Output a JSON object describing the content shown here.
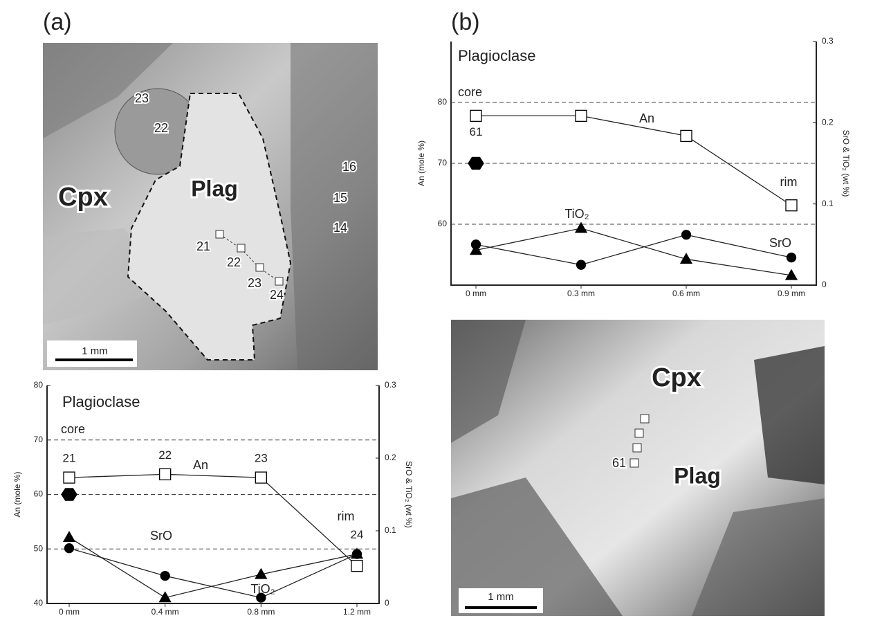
{
  "panels": [
    {
      "label": "(a)",
      "image_labels": [
        "23",
        "22",
        "Cpx",
        "Plag",
        "16",
        "15",
        "14",
        "21",
        "22",
        "23",
        "24",
        "1 mm"
      ]
    },
    {
      "label": "(b)",
      "image_labels": [
        "Cpx",
        "Plag",
        "61",
        "1 mm"
      ]
    }
  ],
  "chart_data": [
    {
      "type": "line",
      "title": "Plagioclase",
      "categories": [
        "0 mm",
        "0.4 mm",
        "0.8 mm",
        "1.2 mm"
      ],
      "ylabel": "An (mole %)",
      "y2label": "SrO & TiO₂ (wt %)",
      "ylim": [
        40,
        80
      ],
      "yticks": [
        40,
        50,
        60,
        70,
        80
      ],
      "y2lim": [
        0,
        0.3
      ],
      "y2ticks": [
        0,
        0.1,
        0.2,
        0.3
      ],
      "grid": "dashed",
      "annotations": [
        "core",
        "rim"
      ],
      "series": [
        {
          "name": "An",
          "marker": "square",
          "color": "#ffffff",
          "connected": true,
          "values": [
            63.1,
            63.7,
            63.1,
            46.9
          ],
          "point_labels": [
            "21",
            "22",
            "23",
            "24"
          ]
        },
        {
          "marker": "hexagon",
          "color": "#000000",
          "connected": false,
          "values": [
            60,
            null,
            null,
            null
          ]
        },
        {
          "name": "SrO",
          "axis": "y2",
          "marker": "circle",
          "color": "#000000",
          "connected": true,
          "values": [
            0.076,
            0.038,
            0.008,
            0.068
          ]
        },
        {
          "name": "TiO₂",
          "axis": "y2",
          "marker": "triangle",
          "color": "#000000",
          "connected": true,
          "values": [
            0.091,
            0.008,
            0.04,
            0.068
          ]
        }
      ]
    },
    {
      "type": "line",
      "title": "Plagioclase",
      "categories": [
        "0 mm",
        "0.3 mm",
        "0.6 mm",
        "0.9 mm"
      ],
      "ylabel": "An (mole %)",
      "y2label": "SrO & TiO₂ (wt %)",
      "ylim": [
        50,
        90
      ],
      "yticks": [
        60,
        70,
        80
      ],
      "y2lim": [
        0,
        0.3
      ],
      "y2ticks": [
        0,
        0.1,
        0.2,
        0.3
      ],
      "grid": "dashed",
      "annotations": [
        "core",
        "rim"
      ],
      "series": [
        {
          "name": "An",
          "marker": "square",
          "color": "#ffffff",
          "connected": true,
          "values": [
            77.8,
            77.8,
            74.5,
            63.1
          ],
          "point_labels": [
            "61",
            null,
            null,
            null
          ]
        },
        {
          "marker": "hexagon",
          "color": "#000000",
          "connected": false,
          "values": [
            70,
            null,
            null,
            null
          ]
        },
        {
          "name": "SrO",
          "axis": "y2",
          "marker": "circle",
          "color": "#000000",
          "connected": true,
          "values": [
            0.05,
            0.025,
            0.062,
            0.034
          ]
        },
        {
          "name": "TiO₂",
          "axis": "y2",
          "marker": "triangle",
          "color": "#000000",
          "connected": true,
          "values": [
            0.043,
            0.07,
            0.032,
            0.012
          ]
        }
      ]
    }
  ]
}
